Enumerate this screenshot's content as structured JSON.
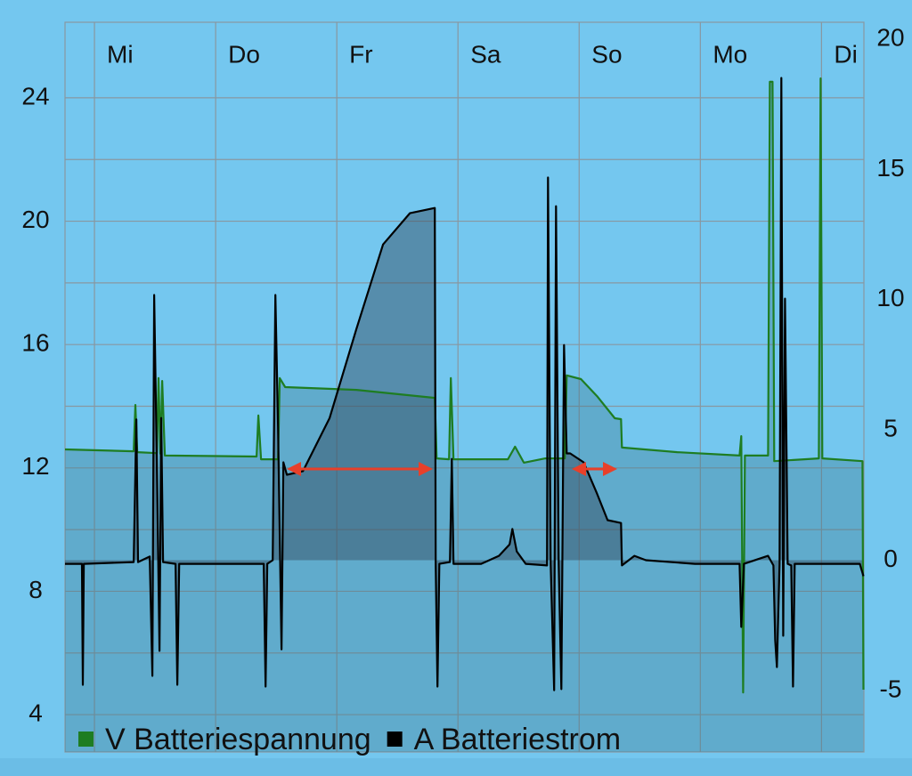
{
  "chart_data": {
    "type": "line",
    "xlim": [
      -0.243,
      6.35
    ],
    "xticks": [
      {
        "value": 0,
        "label": "Mi"
      },
      {
        "value": 1,
        "label": "Do"
      },
      {
        "value": 2,
        "label": "Fr"
      },
      {
        "value": 3,
        "label": "Sa"
      },
      {
        "value": 4,
        "label": "So"
      },
      {
        "value": 5,
        "label": "Mo"
      },
      {
        "value": 6,
        "label": "Di"
      }
    ],
    "ylim": [
      2.79,
      26.45
    ],
    "yticks": [
      4,
      8,
      12,
      16,
      20,
      24
    ],
    "y_minor_grid": [
      6,
      10,
      14,
      18,
      22
    ],
    "y2lim": [
      -7.36,
      20.65
    ],
    "y2ticks": [
      -5,
      0,
      5,
      10,
      15,
      20
    ],
    "grid": true,
    "legend": "bottom-left",
    "series": [
      {
        "name": "V Batteriespannung",
        "color": "#1e7d22",
        "x": [
          -0.243,
          0.324,
          0.338,
          0.353,
          0.515,
          0.529,
          0.544,
          0.559,
          0.581,
          1.338,
          1.353,
          1.375,
          1.515,
          1.529,
          1.574,
          2.162,
          2.809,
          2.824,
          2.926,
          2.941,
          2.963,
          3.412,
          3.471,
          3.544,
          3.721,
          3.882,
          3.897,
          4.015,
          4.147,
          4.294,
          4.346,
          4.353,
          4.809,
          5.324,
          5.338,
          5.353,
          5.368,
          5.559,
          5.574,
          5.596,
          5.61,
          5.978,
          5.993,
          6.007,
          6.338,
          6.346
        ],
        "values": [
          12.6,
          12.54,
          14.04,
          12.51,
          12.48,
          14.91,
          12.46,
          14.82,
          12.4,
          12.37,
          13.7,
          12.28,
          12.28,
          14.91,
          14.62,
          14.53,
          14.27,
          12.31,
          12.28,
          14.91,
          12.28,
          12.28,
          12.69,
          12.17,
          12.31,
          12.31,
          15.0,
          14.88,
          14.33,
          13.61,
          13.58,
          12.66,
          12.51,
          12.4,
          13.03,
          4.72,
          12.4,
          12.4,
          24.52,
          24.52,
          12.22,
          12.31,
          24.63,
          12.31,
          12.22,
          4.81
        ]
      },
      {
        "name": "A Batteriestrom",
        "color": "#000000",
        "axis": "y2",
        "x": [
          -0.243,
          -0.103,
          -0.096,
          -0.088,
          0.324,
          0.346,
          0.36,
          0.456,
          0.478,
          0.493,
          0.515,
          0.537,
          0.551,
          0.566,
          0.669,
          0.684,
          0.699,
          1.397,
          1.412,
          1.426,
          1.471,
          1.493,
          1.515,
          1.544,
          1.559,
          1.588,
          1.721,
          1.941,
          2.162,
          2.382,
          2.603,
          2.809,
          2.816,
          2.831,
          2.846,
          2.934,
          2.949,
          2.963,
          3.191,
          3.338,
          3.426,
          3.449,
          3.485,
          3.559,
          3.735,
          3.743,
          3.765,
          3.794,
          3.809,
          3.831,
          3.853,
          3.875,
          3.897,
          3.926,
          4.037,
          4.147,
          4.235,
          4.346,
          4.353,
          4.456,
          4.551,
          4.956,
          5.324,
          5.338,
          5.36,
          5.559,
          5.603,
          5.618,
          5.632,
          5.654,
          5.669,
          5.684,
          5.699,
          5.721,
          5.75,
          5.765,
          5.779,
          6.316,
          6.346
        ],
        "values": [
          -0.14,
          -0.14,
          -4.78,
          -0.14,
          -0.07,
          5.4,
          -0.07,
          0.14,
          -4.44,
          10.18,
          3.76,
          -3.48,
          5.46,
          -0.07,
          -0.14,
          -4.78,
          -0.14,
          -0.14,
          -4.85,
          -0.14,
          0,
          10.18,
          5.12,
          -3.42,
          3.76,
          3.28,
          3.42,
          5.46,
          8.88,
          12.12,
          13.32,
          13.52,
          -0.14,
          -4.85,
          -0.14,
          -0.07,
          3.89,
          -0.14,
          -0.14,
          0.17,
          0.61,
          1.2,
          0.34,
          -0.14,
          -0.2,
          14.69,
          -0.14,
          -4.99,
          13.59,
          -0.14,
          -4.95,
          8.26,
          4.1,
          4.1,
          3.76,
          2.56,
          1.54,
          1.43,
          -0.2,
          0.17,
          0,
          -0.14,
          -0.14,
          -2.56,
          -0.14,
          0.17,
          -0.2,
          -3.07,
          -4.1,
          -0.14,
          18.51,
          -2.9,
          10.04,
          -0.14,
          -0.2,
          -4.85,
          -0.14,
          -0.14,
          -0.61
        ]
      }
    ]
  }
}
